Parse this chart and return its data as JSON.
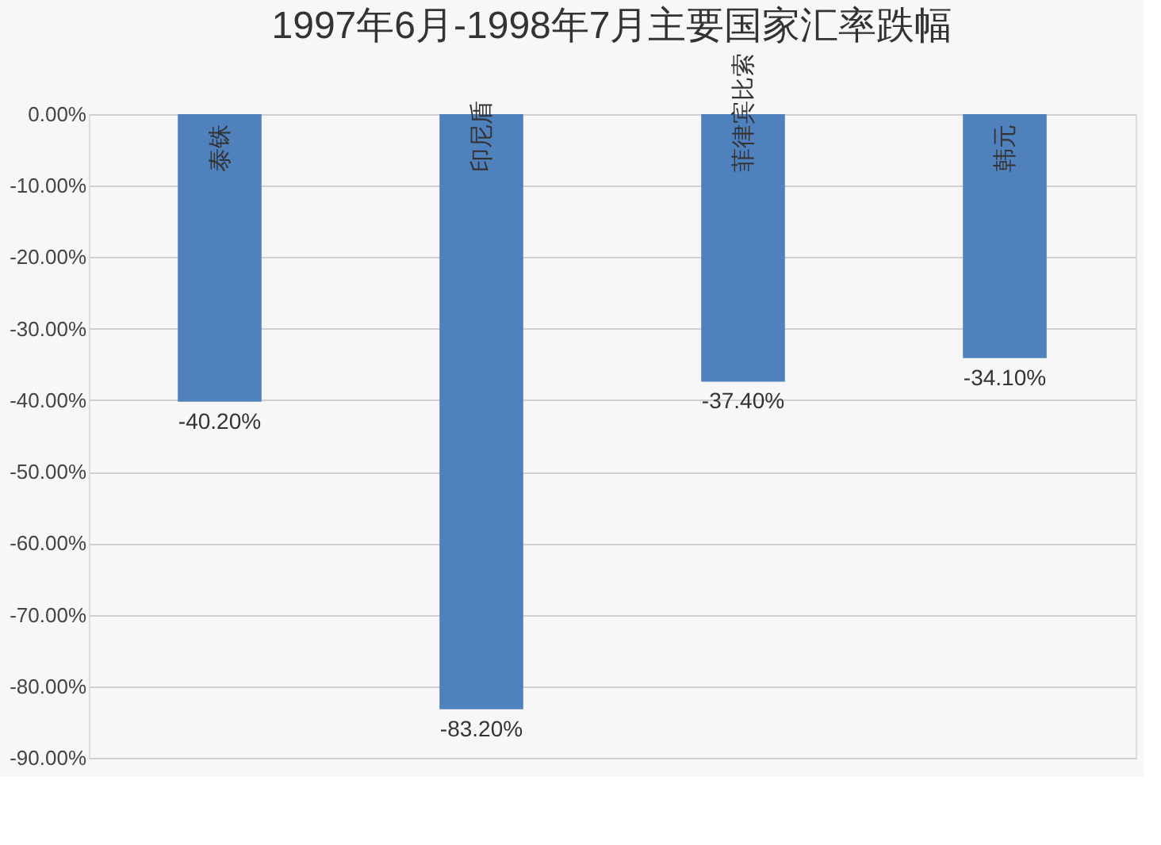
{
  "chart_data": {
    "type": "bar",
    "title": "1997年6月-1998年7月主要国家汇率跌幅",
    "categories": [
      "泰铢",
      "印尼盾",
      "菲律宾比索",
      "韩元"
    ],
    "values": [
      -40.2,
      -83.2,
      -37.4,
      -34.1
    ],
    "value_labels": [
      "-40.20%",
      "-83.20%",
      "-37.40%",
      "-34.10%"
    ],
    "color": "#4f81bd",
    "ylim": [
      -90,
      0
    ],
    "yticks": [
      {
        "value": 0,
        "label": "0.00%"
      },
      {
        "value": -10,
        "label": "-10.00%"
      },
      {
        "value": -20,
        "label": "-20.00%"
      },
      {
        "value": -30,
        "label": "-30.00%"
      },
      {
        "value": -40,
        "label": "-40.00%"
      },
      {
        "value": -50,
        "label": "-50.00%"
      },
      {
        "value": -60,
        "label": "-60.00%"
      },
      {
        "value": -70,
        "label": "-70.00%"
      },
      {
        "value": -80,
        "label": "-80.00%"
      },
      {
        "value": -90,
        "label": "-90.00%"
      }
    ],
    "grid": "y"
  }
}
